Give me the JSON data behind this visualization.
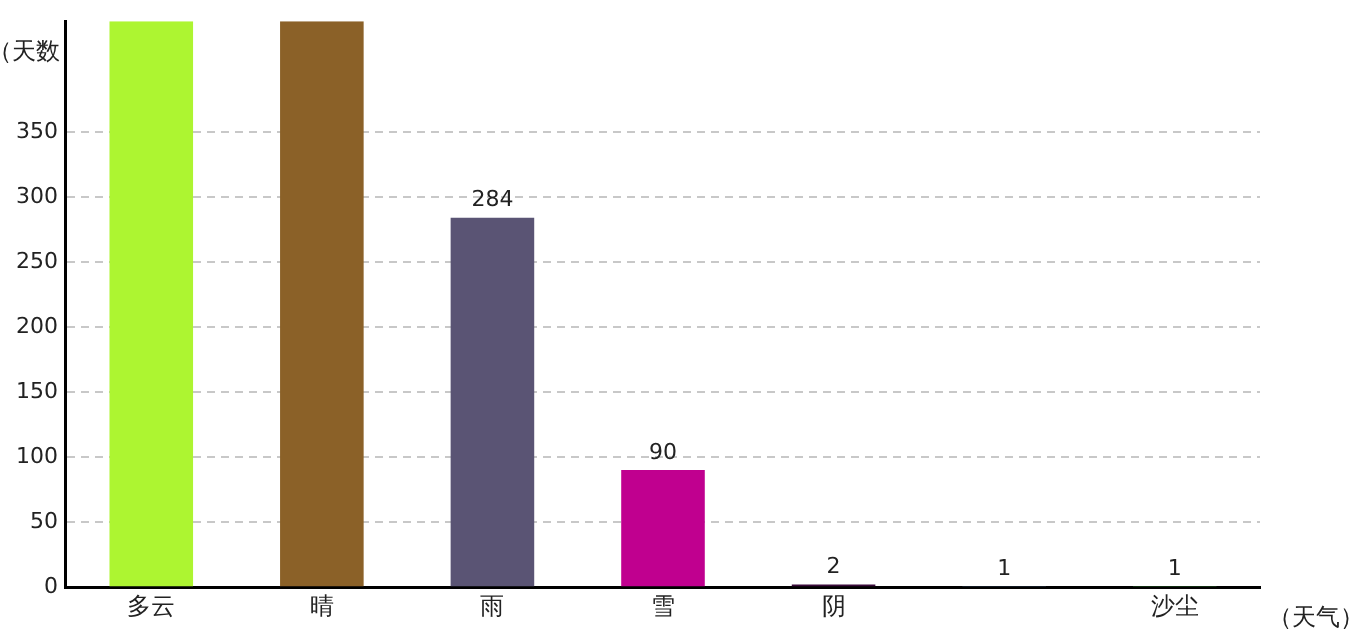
{
  "chart_data": {
    "type": "bar",
    "xlabel": "（天气）",
    "ylabel": "（天数",
    "categories": [
      "多云",
      "晴",
      "雨",
      "雪",
      "阴",
      null,
      "沙尘"
    ],
    "values": [
      435,
      435,
      284,
      90,
      2,
      1,
      1
    ],
    "value_labels": [
      null,
      null,
      "284",
      "90",
      "2",
      "1",
      "1"
    ],
    "colors": [
      "#adf531",
      "#8b6128",
      "#5a5474",
      "#c0008f",
      "#3a0a3a",
      "#4a6a8a",
      "#40b040"
    ],
    "ylim": [
      0,
      435
    ],
    "yticks": [
      0,
      50,
      100,
      150,
      200,
      250,
      300,
      350
    ],
    "grid": "y",
    "legend": false
  }
}
